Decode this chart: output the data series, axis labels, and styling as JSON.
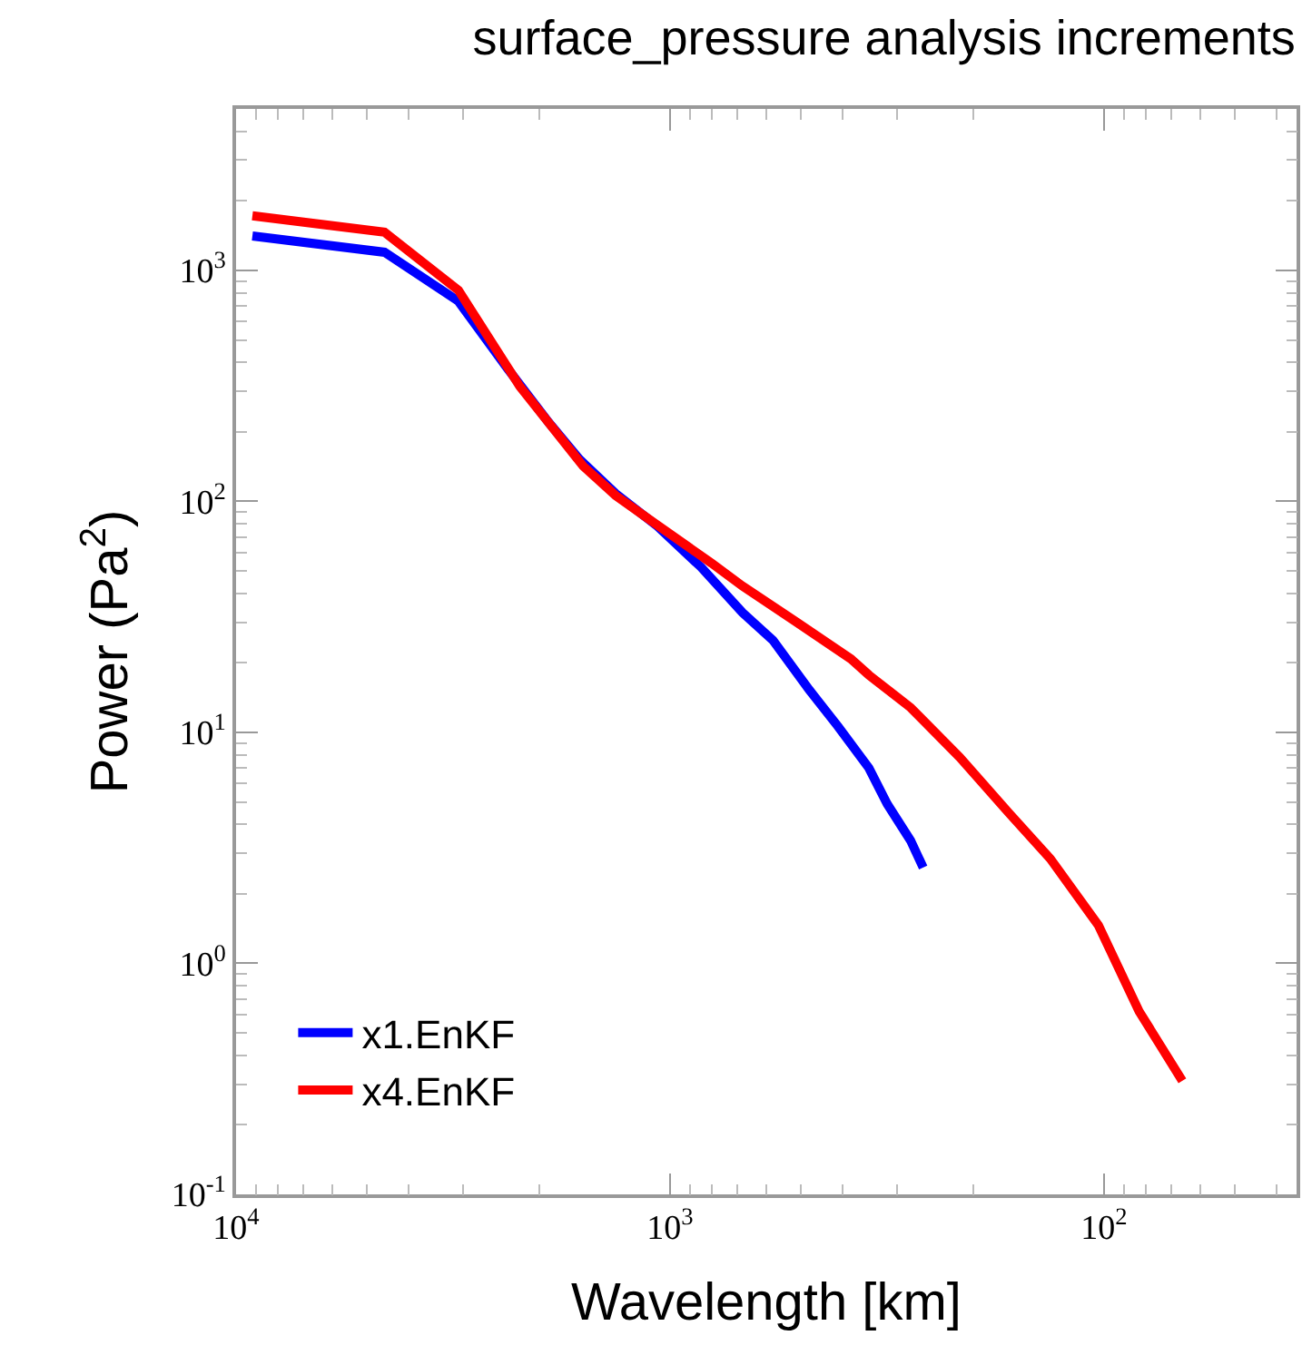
{
  "chart_data": {
    "type": "line",
    "title": "surface_pressure analysis increments",
    "xlabel": "Wavelength [km]",
    "ylabel": "Power (Pa$^{2}$)",
    "log": "xy",
    "legend": "bottom left",
    "marker": "none",
    "line_style": "solid",
    "xlim": [
      10000,
      36
    ],
    "ylim": [
      0.1,
      5000
    ],
    "xticks": [
      {
        "value": 10000,
        "label": "10$^{4}$"
      },
      {
        "value": 1000,
        "label": "10$^{3}$"
      },
      {
        "value": 100,
        "label": "10$^{2}$"
      }
    ],
    "yticks": [
      {
        "value": 0.1,
        "label": "10$^{-1}$"
      },
      {
        "value": 1,
        "label": "10$^{0}$"
      },
      {
        "value": 10,
        "label": "10$^{1}$"
      },
      {
        "value": 100,
        "label": "10$^{2}$"
      },
      {
        "value": 1000,
        "label": "10$^{3}$"
      }
    ],
    "series": [
      {
        "name": "x1.EnKF",
        "color": "#0000ff",
        "x": [
          9170,
          4550,
          3073,
          2371,
          1901,
          1616,
          1334,
          1069,
          849,
          681,
          579,
          478,
          410,
          348,
          316,
          279,
          261
        ],
        "values": [
          1410,
          1198,
          735,
          377,
          219,
          152,
          108,
          78,
          52,
          33,
          25,
          15.3,
          10.6,
          7.0,
          4.9,
          3.4,
          2.6
        ]
      },
      {
        "name": "x4.EnKF",
        "color": "#ff0000",
        "x": [
          9170,
          4550,
          3073,
          2218,
          1585,
          1334,
          1101,
          802,
          681,
          511,
          383,
          348,
          279,
          215,
          166,
          133,
          103,
          83,
          66
        ],
        "values": [
          1722,
          1463,
          820,
          314,
          142,
          106,
          82,
          54,
          43,
          30,
          20.8,
          17.7,
          12.8,
          7.8,
          4.5,
          2.84,
          1.46,
          0.62,
          0.31
        ]
      }
    ]
  }
}
